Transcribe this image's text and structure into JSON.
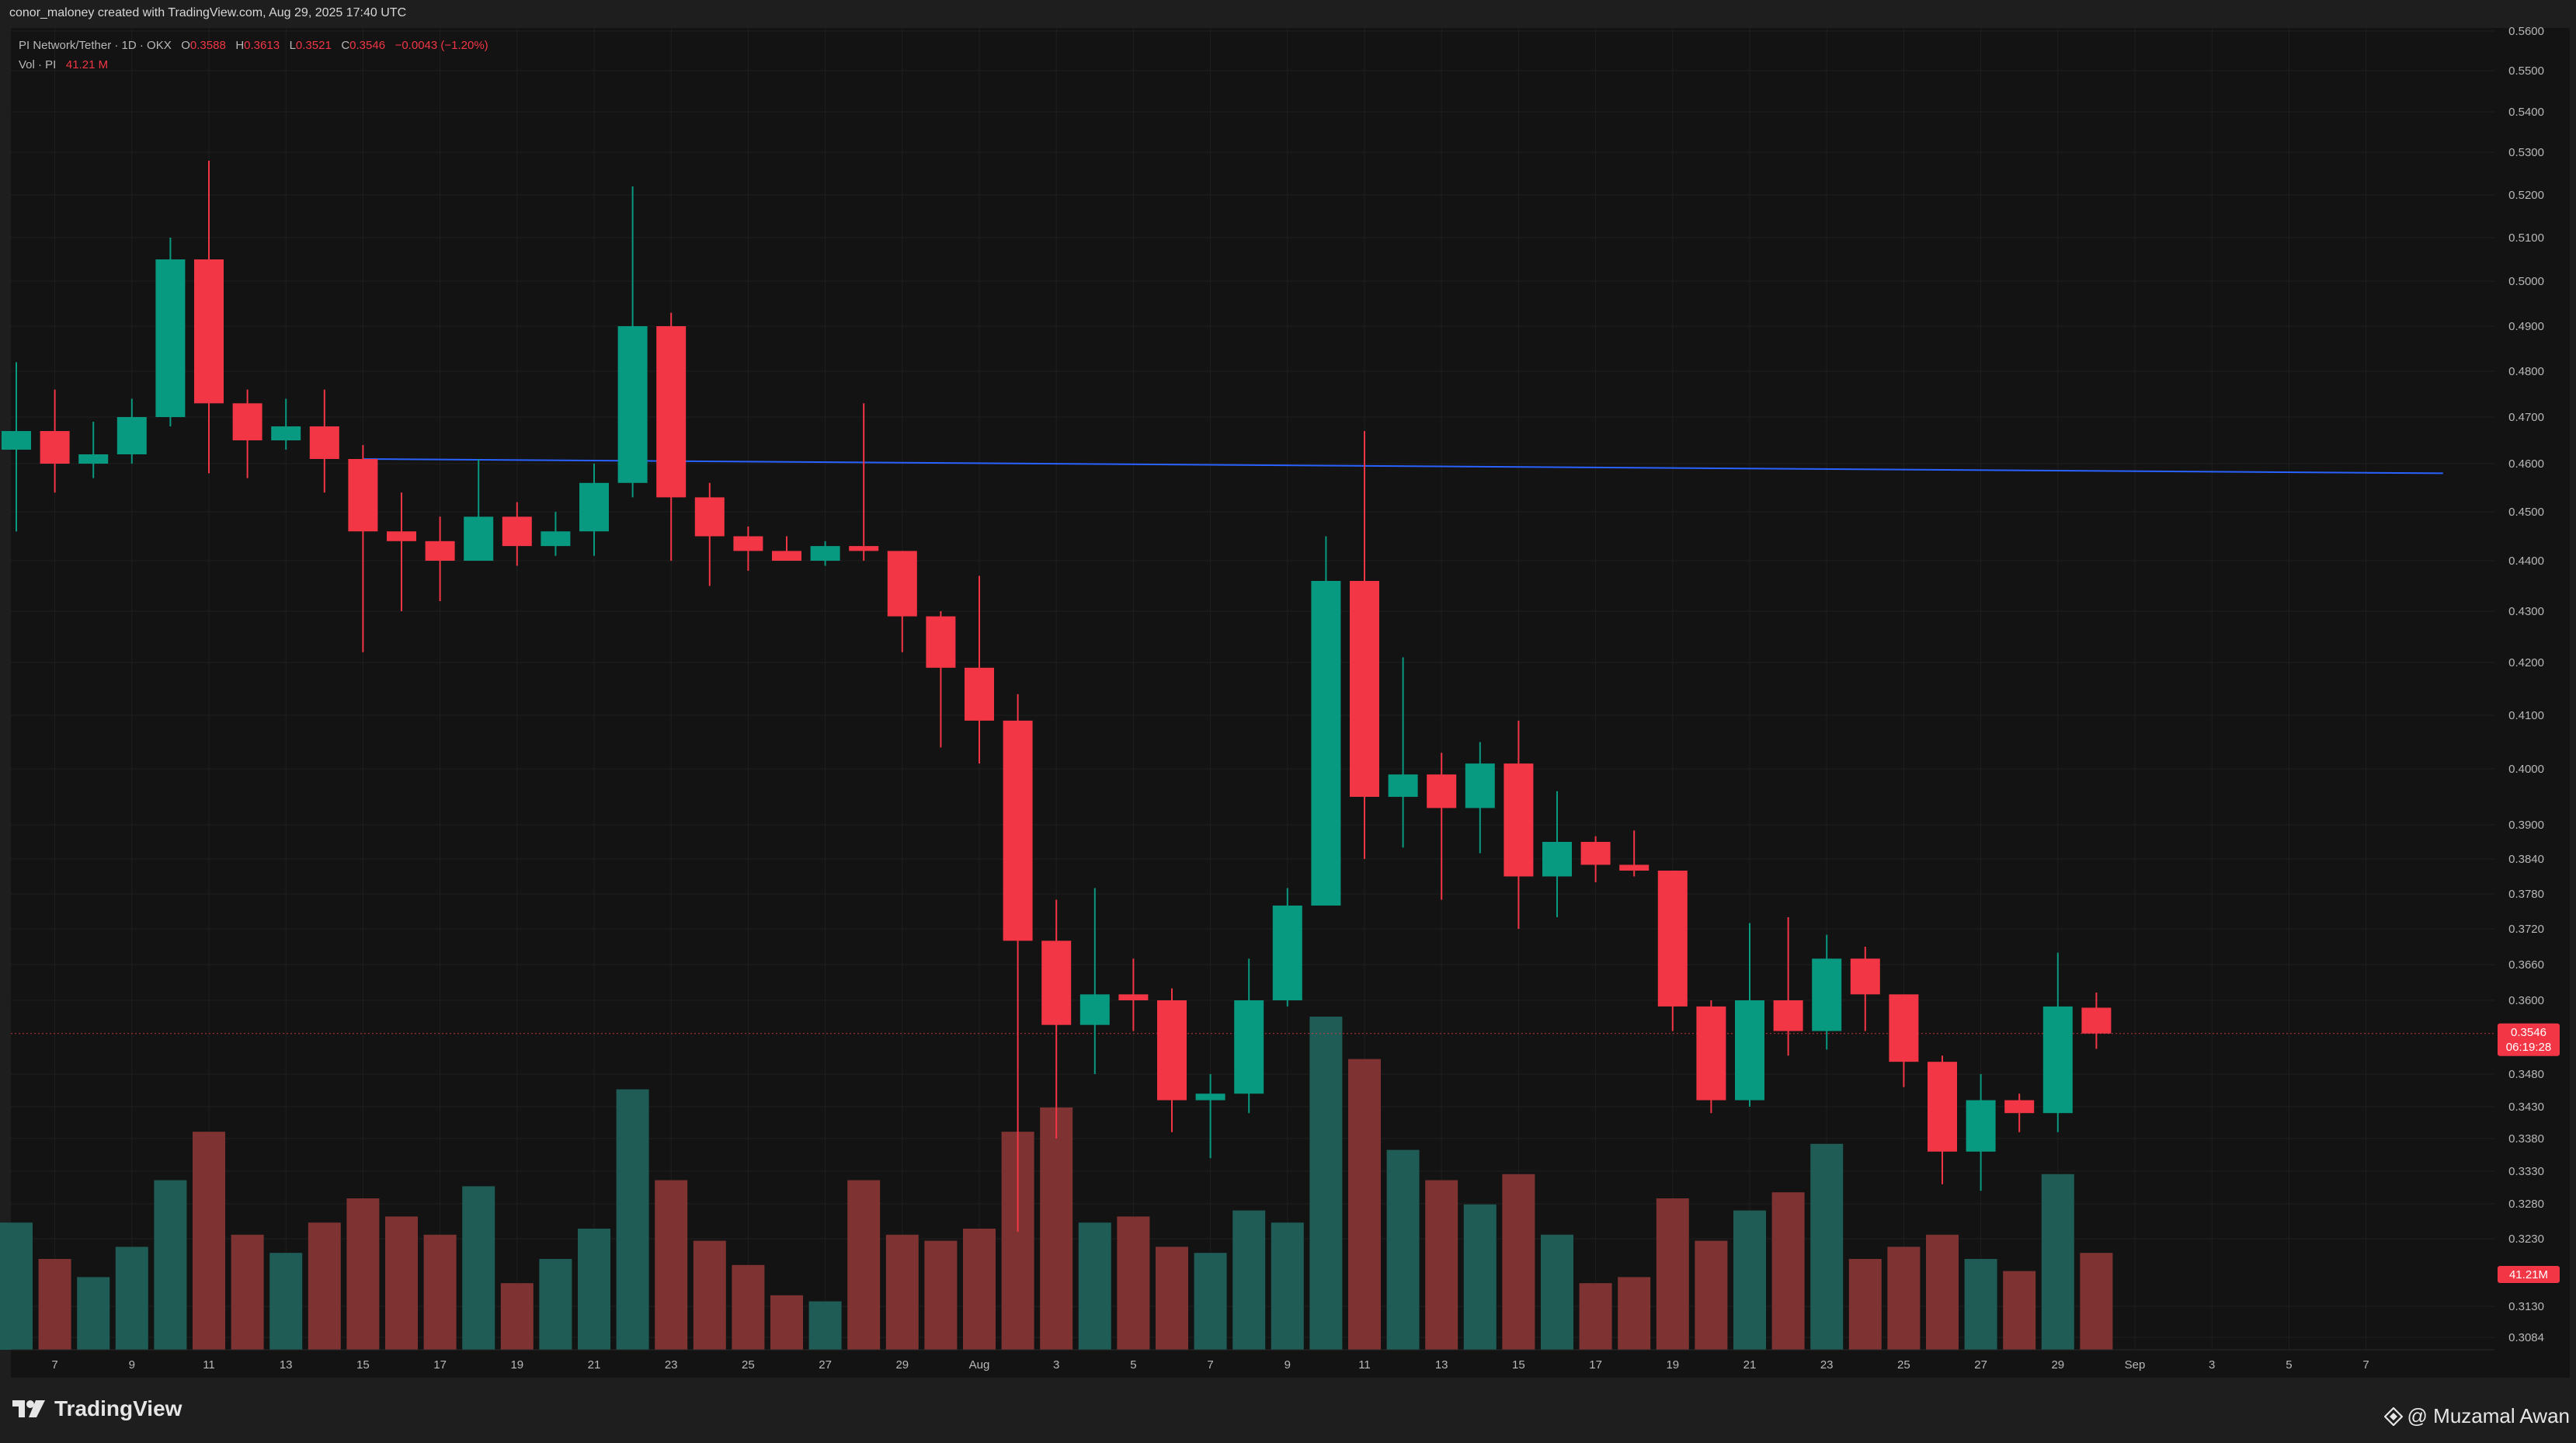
{
  "credit": "conor_maloney created with TradingView.com, Aug 29, 2025 17:40 UTC",
  "legend": {
    "symbol": "PI Network/Tether · 1D · OKX",
    "o_label": "O",
    "o_value": "0.3588",
    "h_label": "H",
    "h_value": "0.3613",
    "l_label": "L",
    "l_value": "0.3521",
    "c_label": "C",
    "c_value": "0.3546",
    "change": "−0.0043 (−1.20%)",
    "vol_label": "Vol · PI",
    "vol_value": "41.21 M"
  },
  "footer": {
    "brand": "TradingView",
    "watermark": "@ Muzamal Awan"
  },
  "colors": {
    "up": "#089981",
    "down": "#f23645",
    "up_vol": "#1e5c55",
    "down_vol": "#7f3232",
    "trendline": "#2962ff",
    "background": "#131313"
  },
  "chart_data": {
    "type": "candlestick",
    "price_axis": {
      "ticks": [
        0.56,
        0.55,
        0.54,
        0.53,
        0.52,
        0.51,
        0.5,
        0.49,
        0.48,
        0.47,
        0.46,
        0.45,
        0.44,
        0.43,
        0.42,
        0.41,
        0.4,
        0.39,
        0.384,
        0.378,
        0.372,
        0.366,
        0.36,
        0.348,
        0.343,
        0.338,
        0.333,
        0.328,
        0.323,
        0.313,
        0.3084
      ],
      "ylim": [
        0.3084,
        0.56
      ],
      "last_price_label": "0.3546",
      "countdown_label": "06:19:28",
      "last_volume_label": "41.21M"
    },
    "date_axis": {
      "labels": [
        "7",
        "9",
        "11",
        "13",
        "15",
        "17",
        "19",
        "21",
        "23",
        "25",
        "27",
        "29",
        "Aug",
        "3",
        "5",
        "7",
        "9",
        "11",
        "13",
        "15",
        "17",
        "19",
        "21",
        "23",
        "25",
        "27",
        "29",
        "Sep",
        "3",
        "5",
        "7"
      ]
    },
    "candles": [
      {
        "date": "Jul 6",
        "o": 0.463,
        "h": 0.482,
        "l": 0.446,
        "c": 0.467,
        "v": 21
      },
      {
        "date": "Jul 7",
        "o": 0.467,
        "h": 0.476,
        "l": 0.454,
        "c": 0.46,
        "v": 15
      },
      {
        "date": "Jul 8",
        "o": 0.46,
        "h": 0.469,
        "l": 0.457,
        "c": 0.462,
        "v": 12
      },
      {
        "date": "Jul 9",
        "o": 0.462,
        "h": 0.474,
        "l": 0.46,
        "c": 0.47,
        "v": 17
      },
      {
        "date": "Jul 10",
        "o": 0.47,
        "h": 0.51,
        "l": 0.468,
        "c": 0.505,
        "v": 28
      },
      {
        "date": "Jul 11",
        "o": 0.505,
        "h": 0.528,
        "l": 0.458,
        "c": 0.473,
        "v": 36
      },
      {
        "date": "Jul 12",
        "o": 0.473,
        "h": 0.476,
        "l": 0.457,
        "c": 0.465,
        "v": 19
      },
      {
        "date": "Jul 13",
        "o": 0.465,
        "h": 0.474,
        "l": 0.463,
        "c": 0.468,
        "v": 16
      },
      {
        "date": "Jul 14",
        "o": 0.468,
        "h": 0.476,
        "l": 0.454,
        "c": 0.461,
        "v": 21
      },
      {
        "date": "Jul 15",
        "o": 0.461,
        "h": 0.464,
        "l": 0.422,
        "c": 0.446,
        "v": 25
      },
      {
        "date": "Jul 16",
        "o": 0.446,
        "h": 0.454,
        "l": 0.43,
        "c": 0.444,
        "v": 22
      },
      {
        "date": "Jul 17",
        "o": 0.444,
        "h": 0.449,
        "l": 0.432,
        "c": 0.44,
        "v": 19
      },
      {
        "date": "Jul 18",
        "o": 0.44,
        "h": 0.461,
        "l": 0.44,
        "c": 0.449,
        "v": 27
      },
      {
        "date": "Jul 19",
        "o": 0.449,
        "h": 0.452,
        "l": 0.439,
        "c": 0.443,
        "v": 11
      },
      {
        "date": "Jul 20",
        "o": 0.443,
        "h": 0.45,
        "l": 0.441,
        "c": 0.446,
        "v": 15
      },
      {
        "date": "Jul 21",
        "o": 0.446,
        "h": 0.46,
        "l": 0.441,
        "c": 0.456,
        "v": 20
      },
      {
        "date": "Jul 22",
        "o": 0.456,
        "h": 0.522,
        "l": 0.453,
        "c": 0.49,
        "v": 43
      },
      {
        "date": "Jul 23",
        "o": 0.49,
        "h": 0.493,
        "l": 0.44,
        "c": 0.453,
        "v": 28
      },
      {
        "date": "Jul 24",
        "o": 0.453,
        "h": 0.456,
        "l": 0.435,
        "c": 0.445,
        "v": 18
      },
      {
        "date": "Jul 25",
        "o": 0.445,
        "h": 0.447,
        "l": 0.438,
        "c": 0.442,
        "v": 14
      },
      {
        "date": "Jul 26",
        "o": 0.442,
        "h": 0.445,
        "l": 0.44,
        "c": 0.44,
        "v": 9
      },
      {
        "date": "Jul 27",
        "o": 0.44,
        "h": 0.444,
        "l": 0.439,
        "c": 0.443,
        "v": 8
      },
      {
        "date": "Jul 28",
        "o": 0.443,
        "h": 0.473,
        "l": 0.44,
        "c": 0.442,
        "v": 28
      },
      {
        "date": "Jul 29",
        "o": 0.442,
        "h": 0.442,
        "l": 0.422,
        "c": 0.429,
        "v": 19
      },
      {
        "date": "Jul 30",
        "o": 0.429,
        "h": 0.43,
        "l": 0.404,
        "c": 0.419,
        "v": 18
      },
      {
        "date": "Jul 31",
        "o": 0.419,
        "h": 0.437,
        "l": 0.401,
        "c": 0.409,
        "v": 20
      },
      {
        "date": "Aug 1",
        "o": 0.409,
        "h": 0.414,
        "l": 0.324,
        "c": 0.37,
        "v": 36
      },
      {
        "date": "Aug 2",
        "o": 0.37,
        "h": 0.377,
        "l": 0.338,
        "c": 0.356,
        "v": 40
      },
      {
        "date": "Aug 3",
        "o": 0.356,
        "h": 0.379,
        "l": 0.348,
        "c": 0.361,
        "v": 21
      },
      {
        "date": "Aug 4",
        "o": 0.361,
        "h": 0.367,
        "l": 0.355,
        "c": 0.36,
        "v": 22
      },
      {
        "date": "Aug 5",
        "o": 0.36,
        "h": 0.362,
        "l": 0.339,
        "c": 0.344,
        "v": 17
      },
      {
        "date": "Aug 6",
        "o": 0.344,
        "h": 0.348,
        "l": 0.335,
        "c": 0.345,
        "v": 16
      },
      {
        "date": "Aug 7",
        "o": 0.345,
        "h": 0.367,
        "l": 0.342,
        "c": 0.36,
        "v": 23
      },
      {
        "date": "Aug 8",
        "o": 0.36,
        "h": 0.379,
        "l": 0.359,
        "c": 0.376,
        "v": 21
      },
      {
        "date": "Aug 9",
        "o": 0.376,
        "h": 0.445,
        "l": 0.376,
        "c": 0.436,
        "v": 55
      },
      {
        "date": "Aug 10",
        "o": 0.436,
        "h": 0.467,
        "l": 0.384,
        "c": 0.395,
        "v": 48
      },
      {
        "date": "Aug 11",
        "o": 0.395,
        "h": 0.421,
        "l": 0.386,
        "c": 0.399,
        "v": 33
      },
      {
        "date": "Aug 12",
        "o": 0.399,
        "h": 0.403,
        "l": 0.377,
        "c": 0.393,
        "v": 28
      },
      {
        "date": "Aug 13",
        "o": 0.393,
        "h": 0.405,
        "l": 0.385,
        "c": 0.401,
        "v": 24
      },
      {
        "date": "Aug 14",
        "o": 0.401,
        "h": 0.409,
        "l": 0.372,
        "c": 0.381,
        "v": 29
      },
      {
        "date": "Aug 15",
        "o": 0.381,
        "h": 0.396,
        "l": 0.374,
        "c": 0.387,
        "v": 19
      },
      {
        "date": "Aug 16",
        "o": 0.387,
        "h": 0.388,
        "l": 0.38,
        "c": 0.383,
        "v": 11
      },
      {
        "date": "Aug 17",
        "o": 0.383,
        "h": 0.389,
        "l": 0.381,
        "c": 0.382,
        "v": 12
      },
      {
        "date": "Aug 18",
        "o": 0.382,
        "h": 0.382,
        "l": 0.355,
        "c": 0.359,
        "v": 25
      },
      {
        "date": "Aug 19",
        "o": 0.359,
        "h": 0.36,
        "l": 0.342,
        "c": 0.344,
        "v": 18
      },
      {
        "date": "Aug 20",
        "o": 0.344,
        "h": 0.373,
        "l": 0.343,
        "c": 0.36,
        "v": 23
      },
      {
        "date": "Aug 21",
        "o": 0.36,
        "h": 0.374,
        "l": 0.351,
        "c": 0.355,
        "v": 26
      },
      {
        "date": "Aug 22",
        "o": 0.355,
        "h": 0.371,
        "l": 0.352,
        "c": 0.367,
        "v": 34
      },
      {
        "date": "Aug 23",
        "o": 0.367,
        "h": 0.369,
        "l": 0.355,
        "c": 0.361,
        "v": 15
      },
      {
        "date": "Aug 24",
        "o": 0.361,
        "h": 0.361,
        "l": 0.346,
        "c": 0.35,
        "v": 17
      },
      {
        "date": "Aug 25",
        "o": 0.35,
        "h": 0.351,
        "l": 0.331,
        "c": 0.336,
        "v": 19
      },
      {
        "date": "Aug 26",
        "o": 0.336,
        "h": 0.348,
        "l": 0.33,
        "c": 0.344,
        "v": 15
      },
      {
        "date": "Aug 27",
        "o": 0.344,
        "h": 0.345,
        "l": 0.339,
        "c": 0.342,
        "v": 13
      },
      {
        "date": "Aug 28",
        "o": 0.342,
        "h": 0.368,
        "l": 0.339,
        "c": 0.359,
        "v": 29
      },
      {
        "date": "Aug 29",
        "o": 0.3588,
        "h": 0.3613,
        "l": 0.3521,
        "c": 0.3546,
        "v": 16
      }
    ],
    "trendline": {
      "from": {
        "date": "Jul 15",
        "price": 0.461
      },
      "to": {
        "date": "Sep 7",
        "price": 0.458
      }
    },
    "grid": true
  }
}
